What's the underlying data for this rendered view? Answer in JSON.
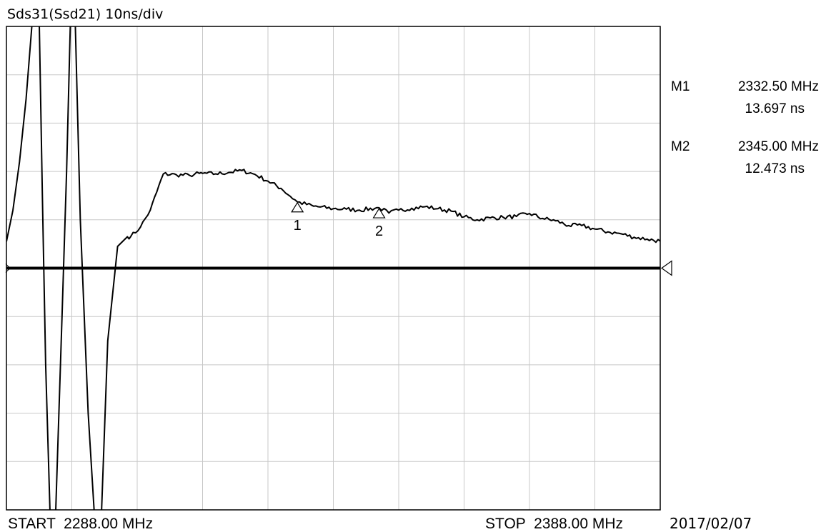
{
  "trace_title": "Sds31(Ssd21) 10ns/div",
  "start_label": "START  2288.00 MHz",
  "stop_label": "STOP  2388.00 MHz",
  "date": "2017/02/07",
  "markers": [
    {
      "name": "M1",
      "freq": "2332.50 MHz",
      "delay": "13.697 ns",
      "tag": "1"
    },
    {
      "name": "M2",
      "freq": "2345.00 MHz",
      "delay": "12.473 ns",
      "tag": "2"
    }
  ],
  "colors": {
    "trace": "#000000",
    "grid": "#c8c8c8",
    "background": "#ffffff"
  },
  "chart_data": {
    "type": "line",
    "title": "Sds31(Ssd21) 10ns/div",
    "x_unit": "MHz",
    "y_unit": "ns",
    "xlim": [
      2288,
      2388
    ],
    "ylim": [
      -50,
      50
    ],
    "y_per_div": 10,
    "reference_level": 0,
    "grid": true,
    "x_divisions": 10,
    "y_divisions": 10,
    "series": [
      {
        "x": [
          2288,
          2289,
          2290,
          2291,
          2292,
          2293,
          2293.5,
          2294,
          2294.7,
          2295.5,
          2296.5,
          2297.2,
          2297.8,
          2298.5,
          2299.3,
          2300.5,
          2301.5,
          2302.5,
          2303.5,
          2305,
          2306.5,
          2307,
          2308.5,
          2310,
          2312,
          2314,
          2316,
          2317.5,
          2318,
          2320,
          2322,
          2324,
          2326,
          2328,
          2330,
          2332.5,
          2335,
          2338,
          2340,
          2342,
          2345,
          2346.5,
          2348,
          2350,
          2352,
          2354,
          2356,
          2358,
          2360,
          2362,
          2364,
          2366,
          2368,
          2370,
          2372,
          2374,
          2376,
          2378,
          2380,
          2382,
          2384,
          2386,
          2388
        ],
        "y": [
          5.5,
          12,
          22,
          35,
          52,
          52,
          15,
          -20,
          -52,
          -52,
          -10,
          20,
          52,
          52,
          10,
          -30,
          -52,
          -52,
          -15,
          4.5,
          6.5,
          6.5,
          8.5,
          12,
          19.5,
          19.3,
          19.2,
          19.6,
          19.6,
          19.5,
          19.8,
          20.2,
          19.4,
          18.0,
          16.5,
          13.7,
          12.8,
          12.3,
          12.2,
          12.0,
          12.5,
          11.4,
          12.0,
          12.4,
          12.7,
          12.3,
          11.8,
          10.6,
          10.0,
          10.4,
          10.5,
          10.7,
          11.3,
          10.3,
          9.8,
          8.8,
          8.8,
          8.1,
          7.5,
          7.1,
          6.4,
          6.0,
          5.6
        ]
      }
    ],
    "markers": [
      {
        "label": "1",
        "x": 2332.5,
        "y": 13.697
      },
      {
        "label": "2",
        "x": 2345.0,
        "y": 12.473
      }
    ]
  }
}
